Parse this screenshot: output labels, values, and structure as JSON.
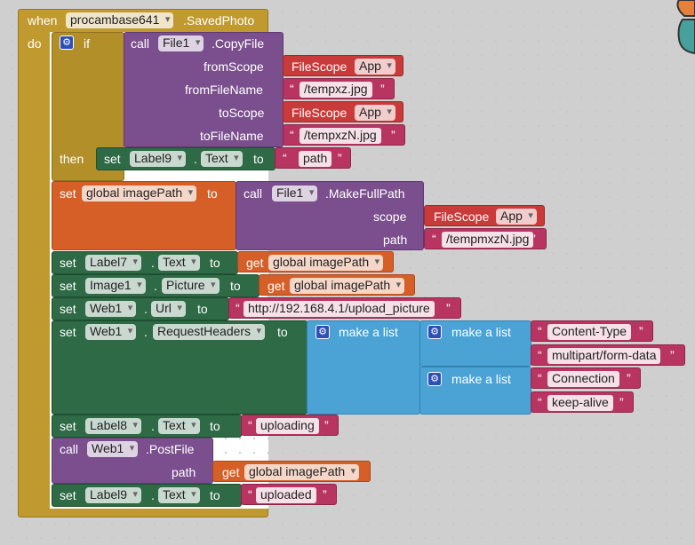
{
  "event": {
    "when": "when",
    "component": "procambase641",
    "event": ".SavedPhoto",
    "do": "do"
  },
  "if_block": {
    "if": "if",
    "then": "then"
  },
  "copy": {
    "call": "call",
    "component": "File1",
    "method": ".CopyFile",
    "from_scope_label": "fromScope",
    "from_filename_label": "fromFileName",
    "to_scope_label": "toScope",
    "to_filename_label": "toFileName",
    "from_filename": "/tempxz.jpg",
    "to_filename": "/tempxzN.jpg"
  },
  "filescope": {
    "label": "FileScope",
    "value": "App"
  },
  "set_label9_path": {
    "set": "set",
    "component": "Label9",
    "prop": "Text",
    "to": "to",
    "value": "path"
  },
  "set_global": {
    "set": "set",
    "var": "global imagePath",
    "to": "to"
  },
  "makefullpath": {
    "call": "call",
    "component": "File1",
    "method": ".MakeFullPath",
    "scope_label": "scope",
    "path_label": "path",
    "path": "/tempmxzN.jpg"
  },
  "set_label7": {
    "set": "set",
    "component": "Label7",
    "prop": "Text",
    "to": "to",
    "get": "get",
    "var": "global imagePath"
  },
  "set_image1": {
    "set": "set",
    "component": "Image1",
    "prop": "Picture",
    "to": "to",
    "get": "get",
    "var": "global imagePath"
  },
  "set_web1_url": {
    "set": "set",
    "component": "Web1",
    "prop": "Url",
    "to": "to",
    "value": "http://192.168.4.1/upload_picture"
  },
  "set_headers": {
    "set": "set",
    "component": "Web1",
    "prop": "RequestHeaders",
    "to": "to",
    "make_list": "make a list",
    "item1": "Content-Type",
    "item2": "multipart/form-data",
    "item3": "Connection",
    "item4": "keep-alive"
  },
  "set_label8": {
    "set": "set",
    "component": "Label8",
    "prop": "Text",
    "to": "to",
    "value": "uploading"
  },
  "postfile": {
    "call": "call",
    "component": "Web1",
    "method": ".PostFile",
    "path_label": "path",
    "get": "get",
    "var": "global imagePath"
  },
  "set_label9_up": {
    "set": "set",
    "component": "Label9",
    "prop": "Text",
    "to": "to",
    "value": "uploaded"
  },
  "dot": ".",
  "quote_open": "“",
  "quote_close": "”"
}
